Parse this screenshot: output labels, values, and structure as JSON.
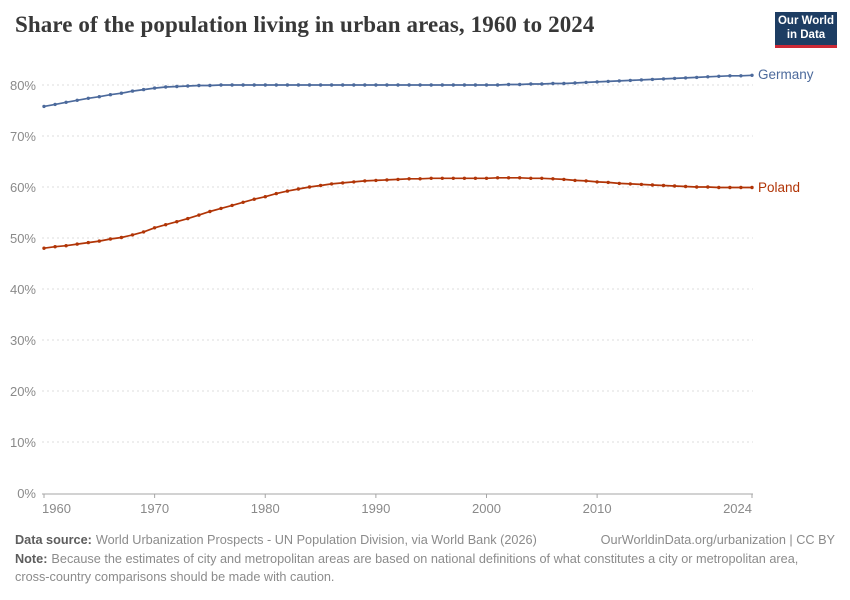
{
  "header": {
    "title": "Share of the population living in urban areas, 1960 to 2024",
    "logo": {
      "line1": "Our World",
      "line2": "in Data"
    }
  },
  "chart_data": {
    "type": "line",
    "title": "Share of the population living in urban areas, 1960 to 2024",
    "xlabel": "",
    "ylabel": "",
    "ylim": [
      0,
      80
    ],
    "y_ticks": [
      0,
      10,
      20,
      30,
      40,
      50,
      60,
      70,
      80
    ],
    "y_tick_suffix": "%",
    "x_ticks": [
      1960,
      1970,
      1980,
      1990,
      2000,
      2010,
      2024
    ],
    "grid": true,
    "legend_position": "right-end-labels",
    "years": [
      1960,
      1961,
      1962,
      1963,
      1964,
      1965,
      1966,
      1967,
      1968,
      1969,
      1970,
      1971,
      1972,
      1973,
      1974,
      1975,
      1976,
      1977,
      1978,
      1979,
      1980,
      1981,
      1982,
      1983,
      1984,
      1985,
      1986,
      1987,
      1988,
      1989,
      1990,
      1991,
      1992,
      1993,
      1994,
      1995,
      1996,
      1997,
      1998,
      1999,
      2000,
      2001,
      2002,
      2003,
      2004,
      2005,
      2006,
      2007,
      2008,
      2009,
      2010,
      2011,
      2012,
      2013,
      2014,
      2015,
      2016,
      2017,
      2018,
      2019,
      2020,
      2021,
      2022,
      2023,
      2024
    ],
    "series": [
      {
        "name": "Germany",
        "color": "#4C6A9C",
        "values": [
          75.8,
          76.2,
          76.6,
          77.0,
          77.4,
          77.7,
          78.1,
          78.4,
          78.8,
          79.1,
          79.4,
          79.6,
          79.7,
          79.8,
          79.9,
          79.9,
          80.0,
          80.0,
          80.0,
          80.0,
          80.0,
          80.0,
          80.0,
          80.0,
          80.0,
          80.0,
          80.0,
          80.0,
          80.0,
          80.0,
          80.0,
          80.0,
          80.0,
          80.0,
          80.0,
          80.0,
          80.0,
          80.0,
          80.0,
          80.0,
          80.0,
          80.0,
          80.1,
          80.1,
          80.2,
          80.2,
          80.3,
          80.3,
          80.4,
          80.5,
          80.6,
          80.7,
          80.8,
          80.9,
          81.0,
          81.1,
          81.2,
          81.3,
          81.4,
          81.5,
          81.6,
          81.7,
          81.8,
          81.8,
          81.9
        ]
      },
      {
        "name": "Poland",
        "color": "#B13507",
        "values": [
          48.0,
          48.3,
          48.5,
          48.8,
          49.1,
          49.4,
          49.8,
          50.1,
          50.6,
          51.2,
          52.0,
          52.6,
          53.2,
          53.8,
          54.5,
          55.2,
          55.8,
          56.4,
          57.0,
          57.6,
          58.1,
          58.7,
          59.2,
          59.6,
          60.0,
          60.3,
          60.6,
          60.8,
          61.0,
          61.2,
          61.3,
          61.4,
          61.5,
          61.6,
          61.6,
          61.7,
          61.7,
          61.7,
          61.7,
          61.7,
          61.7,
          61.8,
          61.8,
          61.8,
          61.7,
          61.7,
          61.6,
          61.5,
          61.3,
          61.2,
          61.0,
          60.9,
          60.7,
          60.6,
          60.5,
          60.4,
          60.3,
          60.2,
          60.1,
          60.0,
          60.0,
          59.9,
          59.9,
          59.9,
          59.9
        ]
      }
    ]
  },
  "footer": {
    "source_label": "Data source:",
    "source_text": "World Urbanization Prospects - UN Population Division, via World Bank (2026)",
    "link_text": "OurWorldinData.org/urbanization | CC BY",
    "note_label": "Note:",
    "note_text": "Because the estimates of city and metropolitan areas are based on national definitions of what constitutes a city or metropolitan area, cross-country comparisons should be made with caution."
  },
  "colors": {
    "title": "#383838",
    "axis_text": "#8a8a8a",
    "gridline": "#dcdcdc",
    "axis_line": "#a5a5a5",
    "logo_bg": "#1d3d63",
    "logo_accent": "#cc2936",
    "footer_text": "#8b8b8b"
  }
}
